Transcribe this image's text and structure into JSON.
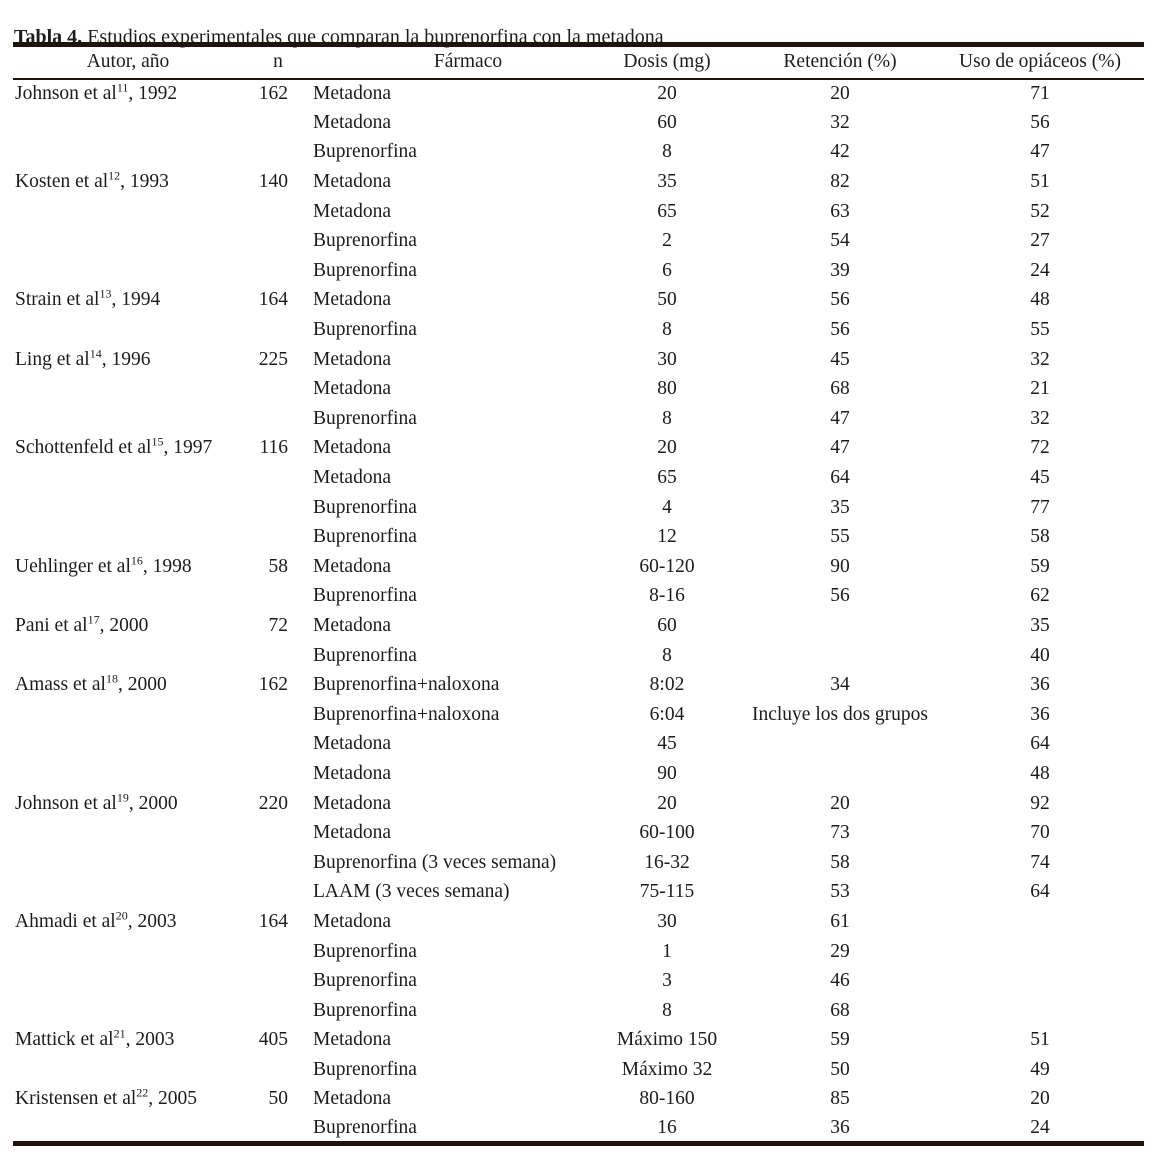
{
  "caption": {
    "label": "Tabla 4.",
    "text": "Estudios experimentales que comparan la buprenorfina con la metadona"
  },
  "colors": {
    "ink": "#1c1c1c",
    "rule": "#20130e",
    "background": "#ffffff"
  },
  "table": {
    "columns": [
      "Autor, año",
      "n",
      "Fármaco",
      "Dosis (mg)",
      "Retención (%)",
      "Uso de opiáceos (%)"
    ],
    "rows": [
      {
        "author": "Johnson et al",
        "ref": "11",
        "year": "1992",
        "n": "162",
        "drug": "Metadona",
        "dose": "20",
        "retention": "20",
        "use": "71"
      },
      {
        "author": "",
        "ref": "",
        "year": "",
        "n": "",
        "drug": "Metadona",
        "dose": "60",
        "retention": "32",
        "use": "56"
      },
      {
        "author": "",
        "ref": "",
        "year": "",
        "n": "",
        "drug": "Buprenorfina",
        "dose": "8",
        "retention": "42",
        "use": "47"
      },
      {
        "author": "Kosten et al",
        "ref": "12",
        "year": "1993",
        "n": "140",
        "drug": "Metadona",
        "dose": "35",
        "retention": "82",
        "use": "51"
      },
      {
        "author": "",
        "ref": "",
        "year": "",
        "n": "",
        "drug": "Metadona",
        "dose": "65",
        "retention": "63",
        "use": "52"
      },
      {
        "author": "",
        "ref": "",
        "year": "",
        "n": "",
        "drug": "Buprenorfina",
        "dose": "2",
        "retention": "54",
        "use": "27"
      },
      {
        "author": "",
        "ref": "",
        "year": "",
        "n": "",
        "drug": "Buprenorfina",
        "dose": "6",
        "retention": "39",
        "use": "24"
      },
      {
        "author": "Strain et al",
        "ref": "13",
        "year": "1994",
        "n": "164",
        "drug": "Metadona",
        "dose": "50",
        "retention": "56",
        "use": "48"
      },
      {
        "author": "",
        "ref": "",
        "year": "",
        "n": "",
        "drug": "Buprenorfina",
        "dose": "8",
        "retention": "56",
        "use": "55"
      },
      {
        "author": "Ling et al",
        "ref": "14",
        "year": "1996",
        "n": "225",
        "drug": "Metadona",
        "dose": "30",
        "retention": "45",
        "use": "32"
      },
      {
        "author": "",
        "ref": "",
        "year": "",
        "n": "",
        "drug": "Metadona",
        "dose": "80",
        "retention": "68",
        "use": "21"
      },
      {
        "author": "",
        "ref": "",
        "year": "",
        "n": "",
        "drug": "Buprenorfina",
        "dose": "8",
        "retention": "47",
        "use": "32"
      },
      {
        "author": "Schottenfeld et al",
        "ref": "15",
        "year": "1997",
        "n": "116",
        "drug": "Metadona",
        "dose": "20",
        "retention": "47",
        "use": "72"
      },
      {
        "author": "",
        "ref": "",
        "year": "",
        "n": "",
        "drug": "Metadona",
        "dose": "65",
        "retention": "64",
        "use": "45"
      },
      {
        "author": "",
        "ref": "",
        "year": "",
        "n": "",
        "drug": "Buprenorfina",
        "dose": "4",
        "retention": "35",
        "use": "77"
      },
      {
        "author": "",
        "ref": "",
        "year": "",
        "n": "",
        "drug": "Buprenorfina",
        "dose": "12",
        "retention": "55",
        "use": "58"
      },
      {
        "author": "Uehlinger et al",
        "ref": "16",
        "year": "1998",
        "n": "58",
        "drug": "Metadona",
        "dose": "60-120",
        "retention": "90",
        "use": "59"
      },
      {
        "author": "",
        "ref": "",
        "year": "",
        "n": "",
        "drug": "Buprenorfina",
        "dose": "8-16",
        "retention": "56",
        "use": "62"
      },
      {
        "author": "Pani et al",
        "ref": "17",
        "year": "2000",
        "n": "72",
        "drug": "Metadona",
        "dose": "60",
        "retention": "",
        "use": "35"
      },
      {
        "author": "",
        "ref": "",
        "year": "",
        "n": "",
        "drug": "Buprenorfina",
        "dose": "8",
        "retention": "",
        "use": "40"
      },
      {
        "author": "Amass et al",
        "ref": "18",
        "year": "2000",
        "n": "162",
        "drug": "Buprenorfina+naloxona",
        "dose": "8:02",
        "retention": "34",
        "use": "36"
      },
      {
        "author": "",
        "ref": "",
        "year": "",
        "n": "",
        "drug": "Buprenorfina+naloxona",
        "dose": "6:04",
        "retention": "Incluye los dos grupos",
        "use": "36"
      },
      {
        "author": "",
        "ref": "",
        "year": "",
        "n": "",
        "drug": "Metadona",
        "dose": "45",
        "retention": "",
        "use": "64"
      },
      {
        "author": "",
        "ref": "",
        "year": "",
        "n": "",
        "drug": "Metadona",
        "dose": "90",
        "retention": "",
        "use": "48"
      },
      {
        "author": "Johnson et al",
        "ref": "19",
        "year": "2000",
        "n": "220",
        "drug": "Metadona",
        "dose": "20",
        "retention": "20",
        "use": "92"
      },
      {
        "author": "",
        "ref": "",
        "year": "",
        "n": "",
        "drug": "Metadona",
        "dose": "60-100",
        "retention": "73",
        "use": "70"
      },
      {
        "author": "",
        "ref": "",
        "year": "",
        "n": "",
        "drug": "Buprenorfina (3 veces semana)",
        "dose": "16-32",
        "retention": "58",
        "use": "74"
      },
      {
        "author": "",
        "ref": "",
        "year": "",
        "n": "",
        "drug": "LAAM (3 veces semana)",
        "dose": "75-115",
        "retention": "53",
        "use": "64"
      },
      {
        "author": "Ahmadi et al",
        "ref": "20",
        "year": "2003",
        "n": "164",
        "drug": "Metadona",
        "dose": "30",
        "retention": "61",
        "use": ""
      },
      {
        "author": "",
        "ref": "",
        "year": "",
        "n": "",
        "drug": "Buprenorfina",
        "dose": "1",
        "retention": "29",
        "use": ""
      },
      {
        "author": "",
        "ref": "",
        "year": "",
        "n": "",
        "drug": "Buprenorfina",
        "dose": "3",
        "retention": "46",
        "use": ""
      },
      {
        "author": "",
        "ref": "",
        "year": "",
        "n": "",
        "drug": "Buprenorfina",
        "dose": "8",
        "retention": "68",
        "use": ""
      },
      {
        "author": "Mattick et al",
        "ref": "21",
        "year": "2003",
        "n": "405",
        "drug": "Metadona",
        "dose": "Máximo 150",
        "retention": "59",
        "use": "51"
      },
      {
        "author": "",
        "ref": "",
        "year": "",
        "n": "",
        "drug": "Buprenorfina",
        "dose": "Máximo 32",
        "retention": "50",
        "use": "49"
      },
      {
        "author": "Kristensen et al",
        "ref": "22",
        "year": "2005",
        "n": "50",
        "drug": "Metadona",
        "dose": "80-160",
        "retention": "85",
        "use": "20"
      },
      {
        "author": "",
        "ref": "",
        "year": "",
        "n": "",
        "drug": "Buprenorfina",
        "dose": "16",
        "retention": "36",
        "use": "24"
      }
    ]
  }
}
